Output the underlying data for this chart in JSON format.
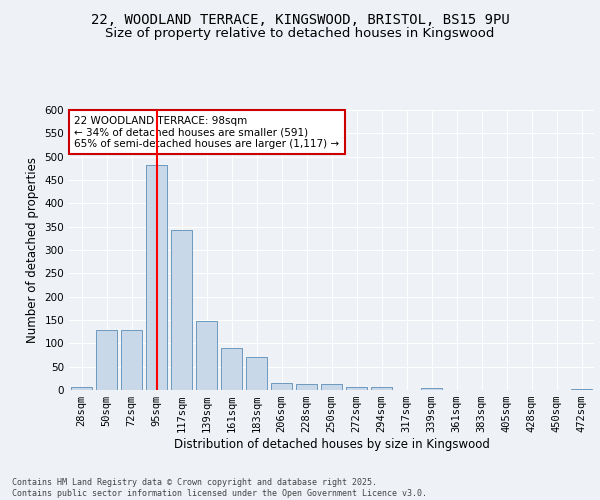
{
  "title_line1": "22, WOODLAND TERRACE, KINGSWOOD, BRISTOL, BS15 9PU",
  "title_line2": "Size of property relative to detached houses in Kingswood",
  "xlabel": "Distribution of detached houses by size in Kingswood",
  "ylabel": "Number of detached properties",
  "categories": [
    "28sqm",
    "50sqm",
    "72sqm",
    "95sqm",
    "117sqm",
    "139sqm",
    "161sqm",
    "183sqm",
    "206sqm",
    "228sqm",
    "250sqm",
    "272sqm",
    "294sqm",
    "317sqm",
    "339sqm",
    "361sqm",
    "383sqm",
    "405sqm",
    "428sqm",
    "450sqm",
    "472sqm"
  ],
  "values": [
    7,
    128,
    128,
    483,
    342,
    148,
    90,
    70,
    16,
    12,
    13,
    6,
    6,
    0,
    4,
    0,
    0,
    0,
    0,
    0,
    3
  ],
  "bar_color": "#c8d8e8",
  "bar_edge_color": "#5b8db8",
  "red_line_x": 3,
  "annotation_text": "22 WOODLAND TERRACE: 98sqm\n← 34% of detached houses are smaller (591)\n65% of semi-detached houses are larger (1,117) →",
  "annotation_box_color": "#ffffff",
  "annotation_box_edge": "#cc0000",
  "footnote": "Contains HM Land Registry data © Crown copyright and database right 2025.\nContains public sector information licensed under the Open Government Licence v3.0.",
  "ylim": [
    0,
    600
  ],
  "yticks": [
    0,
    50,
    100,
    150,
    200,
    250,
    300,
    350,
    400,
    450,
    500,
    550,
    600
  ],
  "background_color": "#eef2f7",
  "grid_color": "#ffffff",
  "title_fontsize": 10,
  "subtitle_fontsize": 9.5,
  "axis_label_fontsize": 8.5,
  "tick_fontsize": 7.5,
  "annotation_fontsize": 7.5,
  "footnote_fontsize": 6.0
}
